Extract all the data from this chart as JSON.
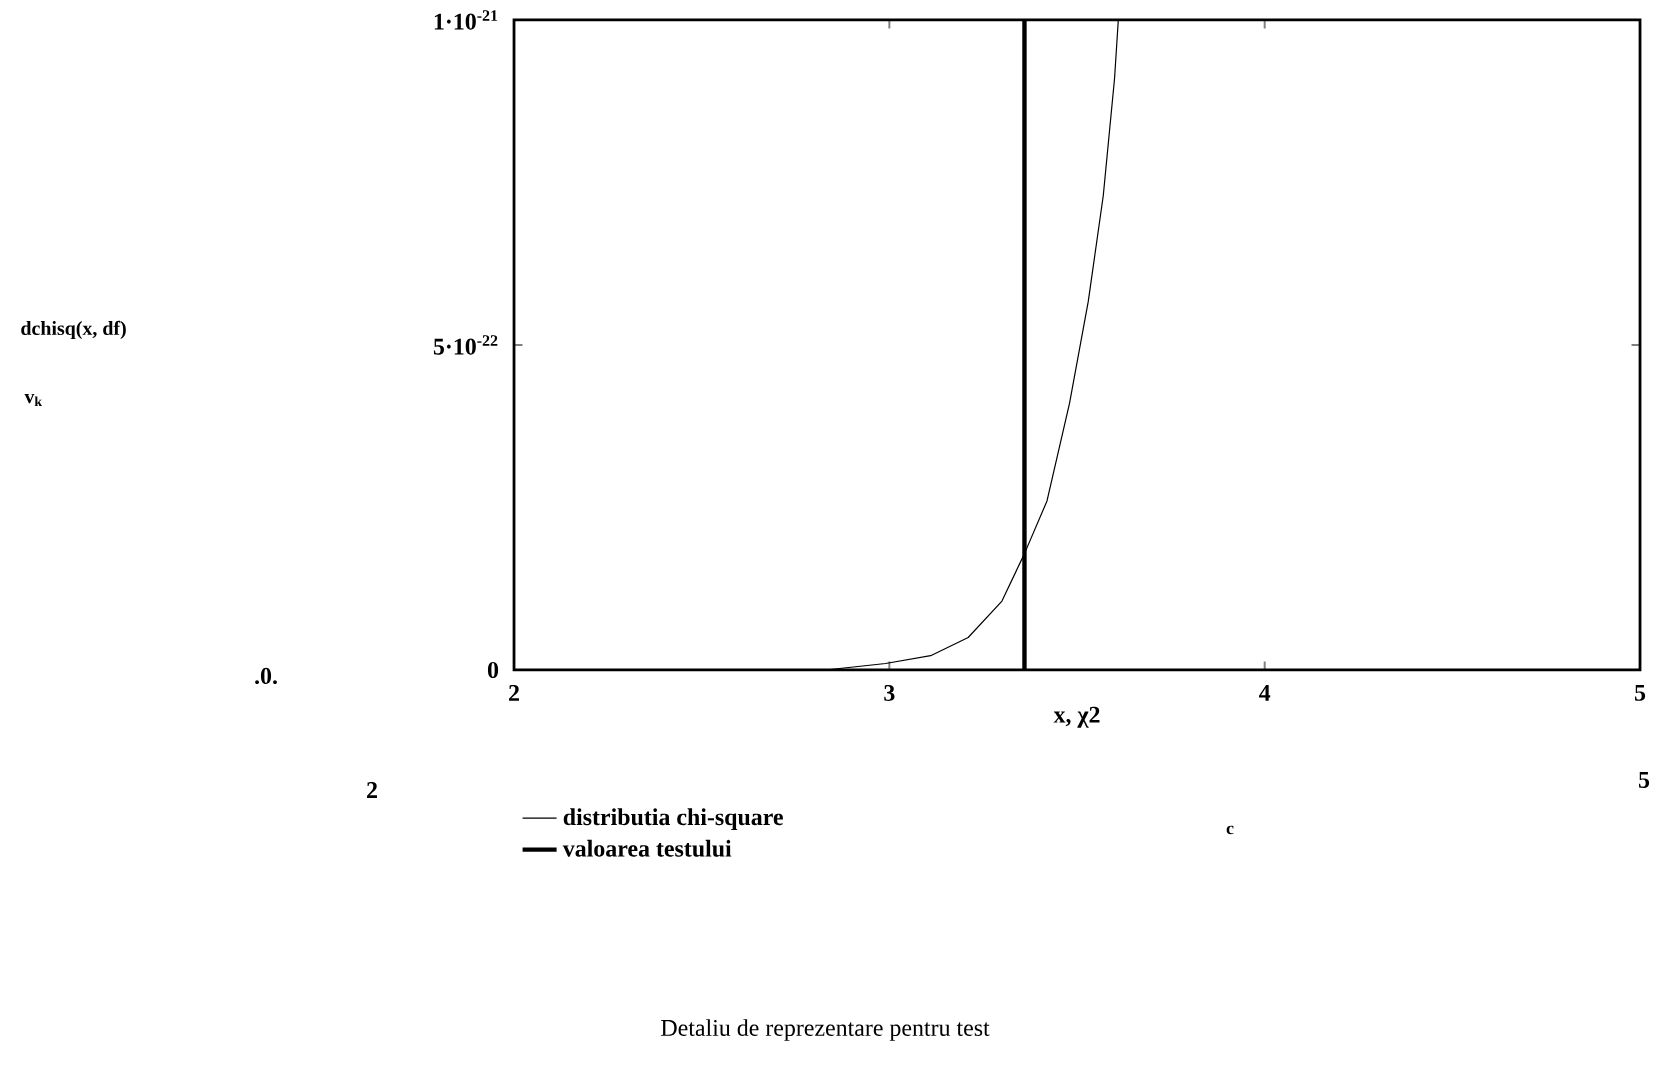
{
  "chart_data": {
    "type": "line",
    "xlabel": "x, χ2",
    "xlim": [
      2,
      5
    ],
    "xticks": [
      2,
      3,
      4,
      5
    ],
    "ylim": [
      0,
      1e-21
    ],
    "yticks": [
      0,
      {
        "value": 5e-22,
        "label": "5·10$^{-22}$"
      },
      {
        "value": 1e-21,
        "label": "1·10$^{-21}$"
      }
    ],
    "series": [
      {
        "name": "distributia chi-square",
        "color": "#000000",
        "x": [
          2.83,
          2.99,
          3.11,
          3.21,
          3.3,
          3.36,
          3.42,
          3.48,
          3.53,
          3.57,
          3.6,
          3.61
        ],
        "values": [
          0,
          1e-23,
          2.2e-23,
          5e-23,
          1.06e-22,
          1.79e-22,
          2.6e-22,
          4.1e-22,
          5.67e-22,
          7.3e-22,
          9.1e-22,
          1e-21
        ]
      },
      {
        "name": "valoarea testului",
        "color": "#000000",
        "x": [
          3.36,
          3.36
        ],
        "values": [
          0,
          1e-21
        ]
      }
    ],
    "legend": "bottom",
    "grid": false,
    "annotations": [
      "dchisq(x, df)",
      "v$_{k}$",
      ".0.",
      "2",
      "5",
      "c",
      "Detaliu de reprezentare pentru test"
    ]
  }
}
